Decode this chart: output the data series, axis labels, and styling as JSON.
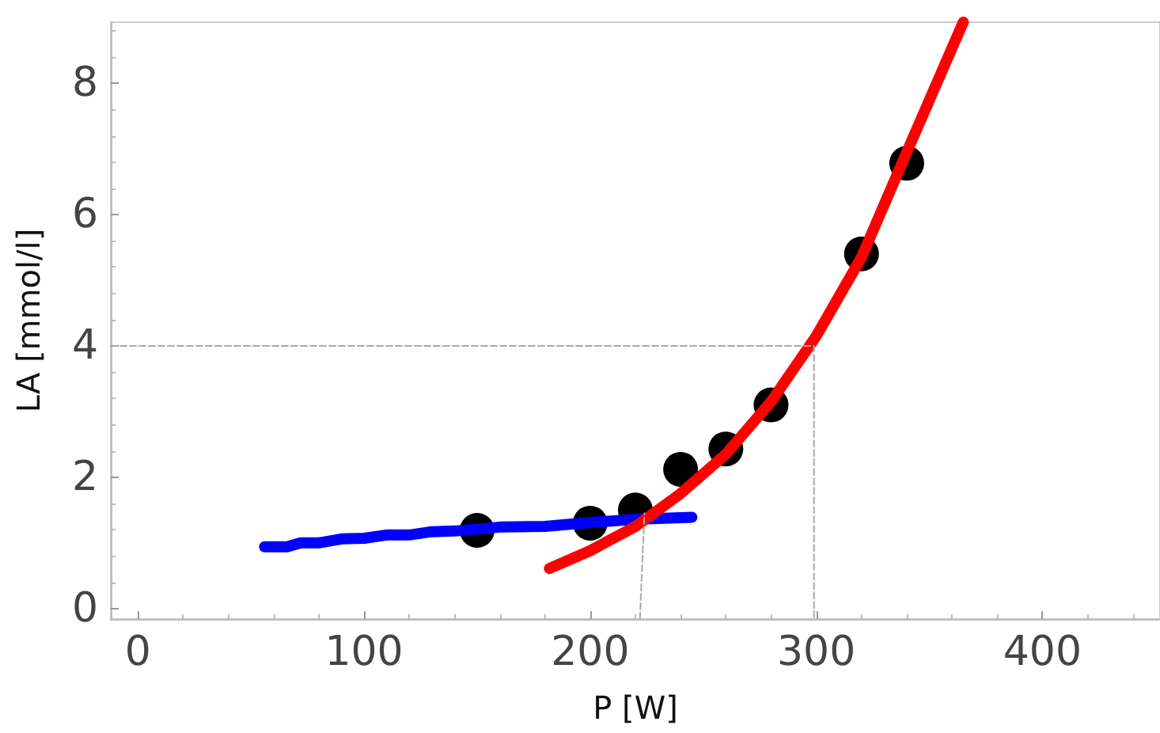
{
  "chart_data": {
    "type": "line",
    "xlabel": "P [W]",
    "ylabel": "LA [mmol/l]",
    "xlim": [
      -12,
      452
    ],
    "xticks": [
      0,
      100,
      200,
      300,
      400
    ],
    "ylim": [
      -0.16,
      8.93
    ],
    "yticks": [
      0,
      2,
      4,
      6,
      8
    ],
    "grid": false,
    "series": [
      {
        "color": "#0000ff",
        "marker": "none",
        "x": [
          56,
          66,
          72,
          80,
          90,
          100,
          110,
          120,
          130,
          140,
          160,
          180,
          200,
          220,
          245
        ],
        "values": [
          0.94,
          0.94,
          1.0,
          1.0,
          1.06,
          1.07,
          1.12,
          1.12,
          1.17,
          1.18,
          1.24,
          1.25,
          1.31,
          1.36,
          1.39
        ]
      },
      {
        "type": "scatter",
        "color": "#000000",
        "marker": "circle",
        "x": [
          150,
          200,
          220,
          240,
          260,
          280,
          320,
          340
        ],
        "values": [
          1.19,
          1.3,
          1.5,
          2.12,
          2.43,
          3.1,
          5.4,
          6.78
        ]
      },
      {
        "color": "#ff0000",
        "marker": "none",
        "x": [
          182,
          200,
          220,
          240,
          260,
          280,
          300,
          320,
          340,
          365
        ],
        "values": [
          0.61,
          0.88,
          1.25,
          1.75,
          2.35,
          3.15,
          4.15,
          5.35,
          6.95,
          8.93
        ]
      },
      {
        "color": "#aaaaaa",
        "marker": "none",
        "line_style": "dashed",
        "x": [
          -12,
          299,
          299
        ],
        "values": [
          4,
          4,
          -0.16
        ]
      },
      {
        "color": "#aaaaaa",
        "marker": "none",
        "line_style": "dashed",
        "x": [
          222,
          224
        ],
        "values": [
          -0.16,
          1.45
        ]
      }
    ]
  }
}
